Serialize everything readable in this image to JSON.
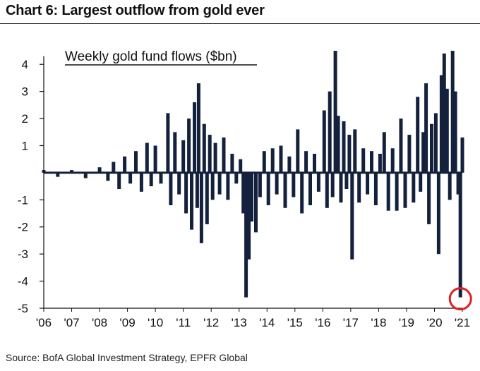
{
  "header": {
    "title": "Chart 6: Largest outflow from gold ever"
  },
  "footer": {
    "source": "Source: BofA Global Investment Strategy, EPFR Global"
  },
  "chart_data": {
    "type": "bar",
    "title": "Weekly gold fund flows ($bn)",
    "xlabel": "",
    "ylabel": "",
    "ylim": [
      -5,
      4.5
    ],
    "y_ticks": [
      -5,
      -4,
      -3,
      -2,
      -1,
      1,
      2,
      3,
      4
    ],
    "x_tick_labels": [
      "'06",
      "'07",
      "'08",
      "'09",
      "'10",
      "'11",
      "'12",
      "'13",
      "'14",
      "'15",
      "'16",
      "'17",
      "'18",
      "'19",
      "'20",
      "'21"
    ],
    "grid": false,
    "bar_color": "#14213d",
    "highlight": {
      "label": "Largest outflow",
      "x": 2020.93,
      "value": -4.6,
      "color": "#e02020"
    },
    "note": "Approximate weekly values read from the chart (x in fractional years)",
    "x": [
      2006.0,
      2006.5,
      2007.0,
      2007.5,
      2008.0,
      2008.3,
      2008.5,
      2008.7,
      2008.9,
      2009.1,
      2009.3,
      2009.5,
      2009.7,
      2009.85,
      2010.0,
      2010.2,
      2010.45,
      2010.55,
      2010.7,
      2010.85,
      2011.0,
      2011.1,
      2011.2,
      2011.3,
      2011.4,
      2011.5,
      2011.55,
      2011.65,
      2011.75,
      2011.85,
      2011.95,
      2012.05,
      2012.15,
      2012.3,
      2012.45,
      2012.6,
      2012.75,
      2012.9,
      2013.05,
      2013.15,
      2013.25,
      2013.35,
      2013.45,
      2013.6,
      2013.75,
      2013.9,
      2014.05,
      2014.2,
      2014.35,
      2014.5,
      2014.65,
      2014.8,
      2014.95,
      2015.1,
      2015.25,
      2015.4,
      2015.55,
      2015.7,
      2015.85,
      2016.05,
      2016.15,
      2016.25,
      2016.35,
      2016.45,
      2016.55,
      2016.65,
      2016.75,
      2016.85,
      2016.95,
      2017.05,
      2017.15,
      2017.3,
      2017.45,
      2017.6,
      2017.75,
      2017.9,
      2018.05,
      2018.2,
      2018.35,
      2018.5,
      2018.65,
      2018.8,
      2018.95,
      2019.1,
      2019.25,
      2019.4,
      2019.5,
      2019.6,
      2019.7,
      2019.8,
      2019.9,
      2020.05,
      2020.15,
      2020.25,
      2020.35,
      2020.45,
      2020.55,
      2020.65,
      2020.75,
      2020.85,
      2020.93,
      2021.0
    ],
    "values": [
      0.1,
      -0.15,
      0.1,
      -0.2,
      0.2,
      -0.3,
      0.4,
      -0.6,
      0.6,
      -0.4,
      0.8,
      -0.7,
      1.1,
      -0.5,
      1.0,
      -0.4,
      2.2,
      -1.2,
      1.5,
      -0.8,
      1.2,
      -1.5,
      2.0,
      -2.1,
      2.6,
      -1.3,
      3.3,
      -2.6,
      1.8,
      -1.9,
      1.4,
      -1.0,
      1.1,
      -0.8,
      1.3,
      -1.0,
      0.7,
      -0.4,
      0.5,
      -1.5,
      -4.6,
      -3.2,
      -1.8,
      -2.2,
      -0.9,
      0.8,
      -1.2,
      0.9,
      -0.8,
      1.0,
      -1.3,
      0.6,
      -0.9,
      1.6,
      -1.5,
      0.8,
      -1.2,
      0.7,
      -0.7,
      2.3,
      -1.3,
      3.0,
      -0.9,
      4.5,
      2.1,
      -1.1,
      1.9,
      -0.6,
      1.4,
      -3.2,
      1.6,
      -1.1,
      0.9,
      -0.8,
      0.8,
      -1.2,
      0.7,
      1.5,
      -1.4,
      0.9,
      -1.4,
      2.0,
      -1.3,
      1.4,
      -1.1,
      2.8,
      -0.7,
      1.5,
      3.3,
      -1.9,
      1.8,
      2.2,
      -3.0,
      3.6,
      4.4,
      3.1,
      -1.0,
      4.5,
      3.0,
      -0.8,
      -4.6,
      1.3
    ]
  }
}
